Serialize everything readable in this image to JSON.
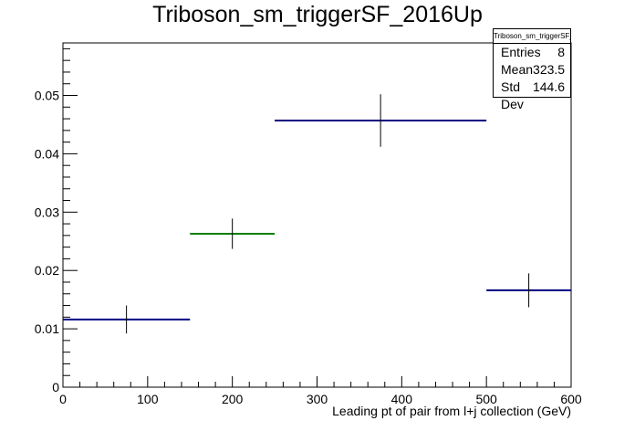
{
  "chart_data": {
    "type": "histogram",
    "title": "Triboson_sm_triggerSF_2016Up",
    "xlabel": "Leading pt of pair from l+j collection (GeV)",
    "ylabel": "",
    "xlim": [
      0,
      600
    ],
    "ylim": [
      0,
      0.059
    ],
    "x_ticks": [
      "0",
      "100",
      "200",
      "300",
      "400",
      "500",
      "600"
    ],
    "y_ticks": [
      "0",
      "0.01",
      "0.02",
      "0.03",
      "0.04",
      "0.05"
    ],
    "grid": false,
    "bins": [
      {
        "x_low": 0,
        "x_high": 150,
        "value": 0.0116,
        "error": 0.0024,
        "color": "#000080"
      },
      {
        "x_low": 150,
        "x_high": 250,
        "value": 0.0263,
        "error": 0.0026,
        "color": "#008000"
      },
      {
        "x_low": 250,
        "x_high": 500,
        "value": 0.0457,
        "error": 0.0045,
        "color": "#000080"
      },
      {
        "x_low": 500,
        "x_high": 600,
        "value": 0.0166,
        "error": 0.0029,
        "color": "#000080"
      }
    ],
    "stats": {
      "name": "Triboson_sm_triggerSF_2016Up",
      "entries_label": "Entries",
      "entries": "8",
      "mean_label": "Mean",
      "mean": "323.5",
      "std_label": "Std Dev",
      "std": "144.6"
    }
  }
}
